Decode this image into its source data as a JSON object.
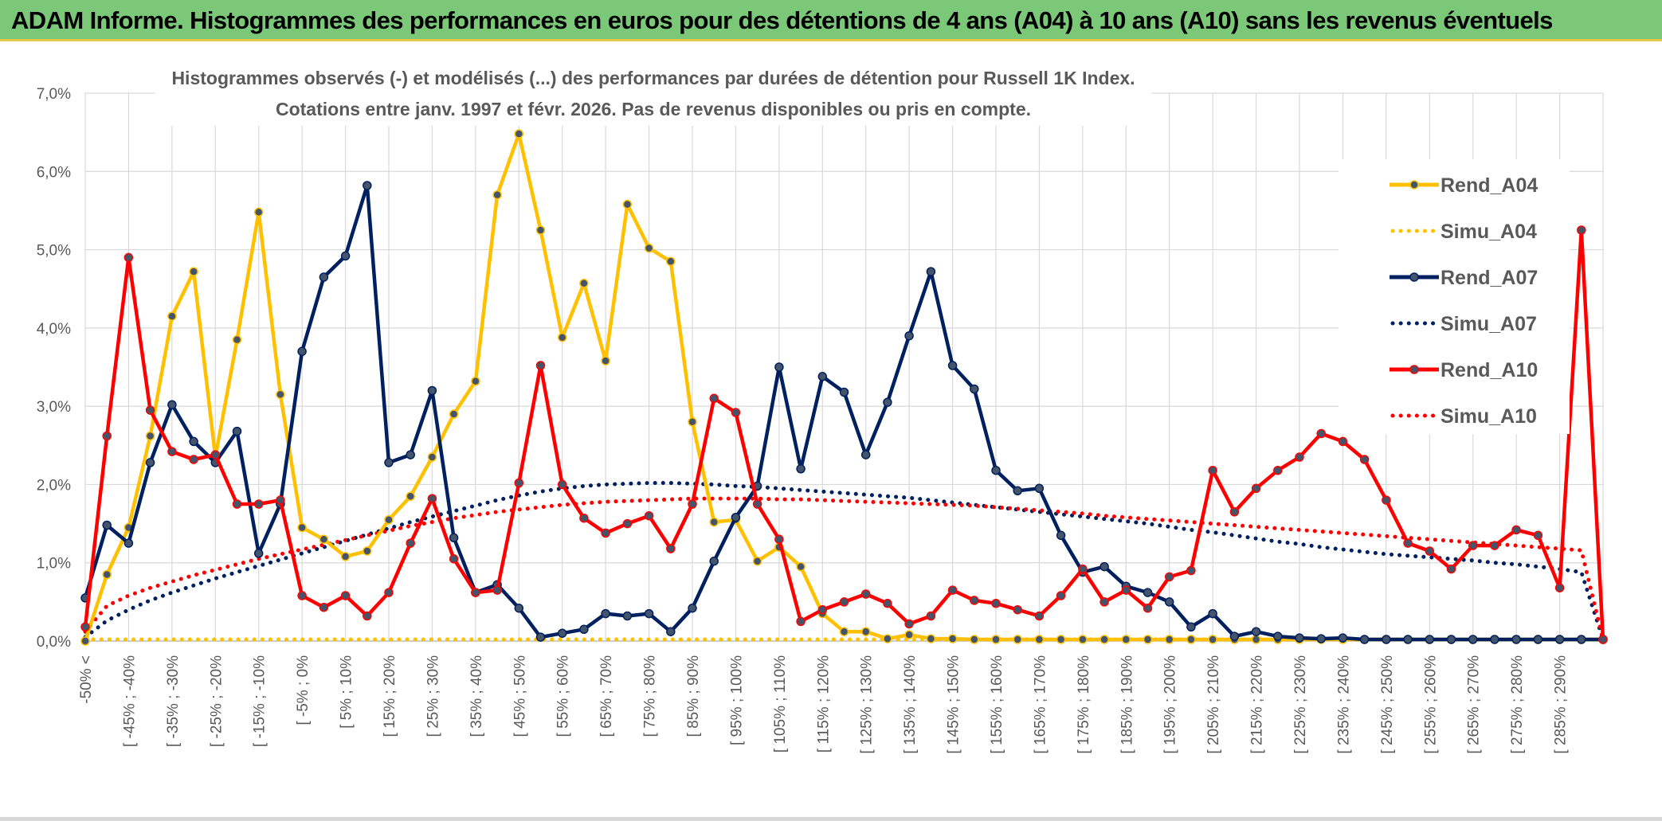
{
  "header": {
    "title": "ADAM Informe. Histogrammes des performances en euros pour des détentions de 4 ans (A04) à 10 ans (A10) sans les revenus éventuels"
  },
  "chart_data": {
    "type": "line",
    "title": "Histogrammes observés (-) et modélisés (...) des performances par durées de détention pour Russell 1K Index.",
    "subtitle": "Cotations entre janv. 1997 et févr. 2026. Pas de revenus disponibles ou pris en compte.",
    "xlabel": "",
    "ylabel": "",
    "ylim": [
      0,
      7
    ],
    "y_ticks": [
      "0,0%",
      "1,0%",
      "2,0%",
      "3,0%",
      "4,0%",
      "5,0%",
      "6,0%",
      "7,0%"
    ],
    "x_tick_labels": [
      "-50% <",
      "[ -45% ; -40%",
      "[ -35% ; -30%",
      "[ -25% ; -20%",
      "[ -15% ; -10%",
      "[ -5% ; 0%",
      "[ 5% ; 10%",
      "[ 15% ; 20%",
      "[ 25% ; 30%",
      "[ 35% ; 40%",
      "[ 45% ; 50%",
      "[ 55% ; 60%",
      "[ 65% ; 70%",
      "[ 75% ; 80%",
      "[ 85% ; 90%",
      "[ 95% ; 100%",
      "[ 105% ; 110%",
      "[ 115% ; 120%",
      "[ 125% ; 130%",
      "[ 135% ; 140%",
      "[ 145% ; 150%",
      "[ 155% ; 160%",
      "[ 165% ; 170%",
      "[ 175% ; 180%",
      "[ 185% ; 190%",
      "[ 195% ; 200%",
      "[ 205% ; 210%",
      "[ 215% ; 220%",
      "[ 225% ; 230%",
      "[ 235% ; 240%",
      "[ 245% ; 250%",
      "[ 255% ; 260%",
      "[ 265% ; 270%",
      "[ 275% ; 280%",
      "[ 285% ; 290%"
    ],
    "grid": true,
    "legend_position": "right",
    "series": [
      {
        "name": "Rend_A04",
        "style": "solid",
        "color": "#FFC000",
        "values": [
          0.0,
          0.85,
          1.45,
          2.62,
          4.15,
          4.72,
          2.35,
          3.85,
          5.48,
          3.15,
          1.45,
          1.3,
          1.08,
          1.15,
          1.55,
          1.85,
          2.35,
          2.9,
          3.32,
          5.7,
          6.48,
          5.25,
          3.88,
          4.57,
          3.58,
          5.58,
          5.02,
          4.85,
          2.8,
          1.52,
          1.55,
          1.02,
          1.2,
          0.95,
          0.35,
          0.12,
          0.12,
          0.03,
          0.08,
          0.03,
          0.03,
          0.02,
          0.02,
          0.02,
          0.02,
          0.02,
          0.02,
          0.02,
          0.02,
          0.02,
          0.02,
          0.02,
          0.02,
          0.02,
          0.02,
          0.02,
          0.02,
          0.02,
          0.02,
          0.02,
          0.02,
          0.02,
          0.02,
          0.02,
          0.02,
          0.02,
          0.02,
          0.02,
          0.02,
          0.02,
          0.02
        ]
      },
      {
        "name": "Simu_A04",
        "style": "dotted",
        "color": "#FFC000",
        "values": [
          0.02,
          0.02,
          0.02,
          0.02,
          0.02,
          0.02,
          0.02,
          0.02,
          0.02,
          0.02,
          0.02,
          0.02,
          0.02,
          0.02,
          0.02,
          0.02,
          0.02,
          0.02,
          0.02,
          0.02,
          0.02,
          0.02,
          0.02,
          0.02,
          0.02,
          0.02,
          0.02,
          0.02,
          0.02,
          0.02,
          0.02,
          0.02,
          0.02,
          0.02,
          0.02,
          0.02,
          0.02,
          0.02,
          0.02,
          0.02,
          0.02,
          0.02,
          0.02,
          0.02,
          0.02,
          0.02,
          0.02,
          0.02,
          0.02,
          0.02,
          0.02,
          0.02,
          0.02,
          0.02,
          0.02,
          0.02,
          0.02,
          0.02,
          0.02,
          0.02,
          0.02,
          0.02,
          0.02,
          0.02,
          0.02,
          0.02,
          0.02,
          0.02,
          0.02,
          0.02,
          0.02
        ]
      },
      {
        "name": "Rend_A07",
        "style": "solid",
        "color": "#002060",
        "values": [
          0.55,
          1.48,
          1.25,
          2.28,
          3.02,
          2.55,
          2.28,
          2.68,
          1.12,
          1.75,
          3.7,
          4.65,
          4.92,
          5.82,
          2.28,
          2.38,
          3.2,
          1.32,
          0.62,
          0.72,
          0.42,
          0.05,
          0.1,
          0.15,
          0.35,
          0.32,
          0.35,
          0.12,
          0.42,
          1.02,
          1.58,
          1.98,
          3.5,
          2.2,
          3.38,
          3.18,
          2.38,
          3.05,
          3.9,
          4.72,
          3.52,
          3.22,
          2.18,
          1.92,
          1.95,
          1.35,
          0.88,
          0.95,
          0.7,
          0.62,
          0.5,
          0.18,
          0.35,
          0.06,
          0.12,
          0.06,
          0.04,
          0.03,
          0.04,
          0.02,
          0.02,
          0.02,
          0.02,
          0.02,
          0.02,
          0.02,
          0.02,
          0.02,
          0.02,
          0.02,
          0.02
        ]
      },
      {
        "name": "Simu_A07",
        "style": "dotted",
        "color": "#002060",
        "values": [
          0.05,
          0.26,
          0.4,
          0.52,
          0.62,
          0.71,
          0.8,
          0.88,
          0.96,
          1.04,
          1.12,
          1.2,
          1.28,
          1.36,
          1.44,
          1.52,
          1.59,
          1.66,
          1.73,
          1.8,
          1.86,
          1.91,
          1.95,
          1.98,
          2.0,
          2.01,
          2.02,
          2.02,
          2.01,
          2.0,
          1.98,
          1.97,
          1.95,
          1.93,
          1.91,
          1.89,
          1.87,
          1.85,
          1.83,
          1.8,
          1.77,
          1.74,
          1.71,
          1.68,
          1.65,
          1.62,
          1.59,
          1.56,
          1.53,
          1.5,
          1.46,
          1.42,
          1.39,
          1.35,
          1.31,
          1.27,
          1.24,
          1.2,
          1.17,
          1.14,
          1.11,
          1.09,
          1.07,
          1.05,
          1.03,
          1.0,
          0.98,
          0.95,
          0.92,
          0.88,
          0.02
        ]
      },
      {
        "name": "Rend_A10",
        "style": "solid",
        "color": "#FF0000",
        "values": [
          0.18,
          2.62,
          4.9,
          2.95,
          2.42,
          2.32,
          2.38,
          1.75,
          1.75,
          1.8,
          0.58,
          0.43,
          0.58,
          0.32,
          0.62,
          1.25,
          1.82,
          1.05,
          0.62,
          0.65,
          2.02,
          3.52,
          2.0,
          1.57,
          1.38,
          1.5,
          1.6,
          1.18,
          1.75,
          3.1,
          2.92,
          1.75,
          1.3,
          0.25,
          0.4,
          0.5,
          0.6,
          0.48,
          0.22,
          0.32,
          0.65,
          0.52,
          0.48,
          0.4,
          0.32,
          0.58,
          0.92,
          0.5,
          0.65,
          0.42,
          0.82,
          0.9,
          2.18,
          1.65,
          1.95,
          2.18,
          2.35,
          2.65,
          2.55,
          2.32,
          1.8,
          1.25,
          1.15,
          0.92,
          1.22,
          1.22,
          1.42,
          1.35,
          0.68,
          5.25,
          0.02
        ]
      },
      {
        "name": "Simu_A10",
        "style": "dotted",
        "color": "#FF0000",
        "values": [
          0.12,
          0.45,
          0.58,
          0.68,
          0.76,
          0.84,
          0.91,
          0.98,
          1.05,
          1.11,
          1.17,
          1.23,
          1.29,
          1.35,
          1.41,
          1.47,
          1.52,
          1.57,
          1.61,
          1.65,
          1.68,
          1.71,
          1.74,
          1.76,
          1.78,
          1.79,
          1.8,
          1.81,
          1.82,
          1.82,
          1.82,
          1.82,
          1.81,
          1.81,
          1.8,
          1.79,
          1.78,
          1.77,
          1.76,
          1.75,
          1.74,
          1.73,
          1.71,
          1.69,
          1.67,
          1.65,
          1.63,
          1.6,
          1.58,
          1.56,
          1.54,
          1.52,
          1.5,
          1.48,
          1.46,
          1.44,
          1.42,
          1.4,
          1.38,
          1.36,
          1.34,
          1.32,
          1.3,
          1.28,
          1.26,
          1.24,
          1.22,
          1.2,
          1.18,
          1.16,
          0.02
        ]
      }
    ]
  }
}
